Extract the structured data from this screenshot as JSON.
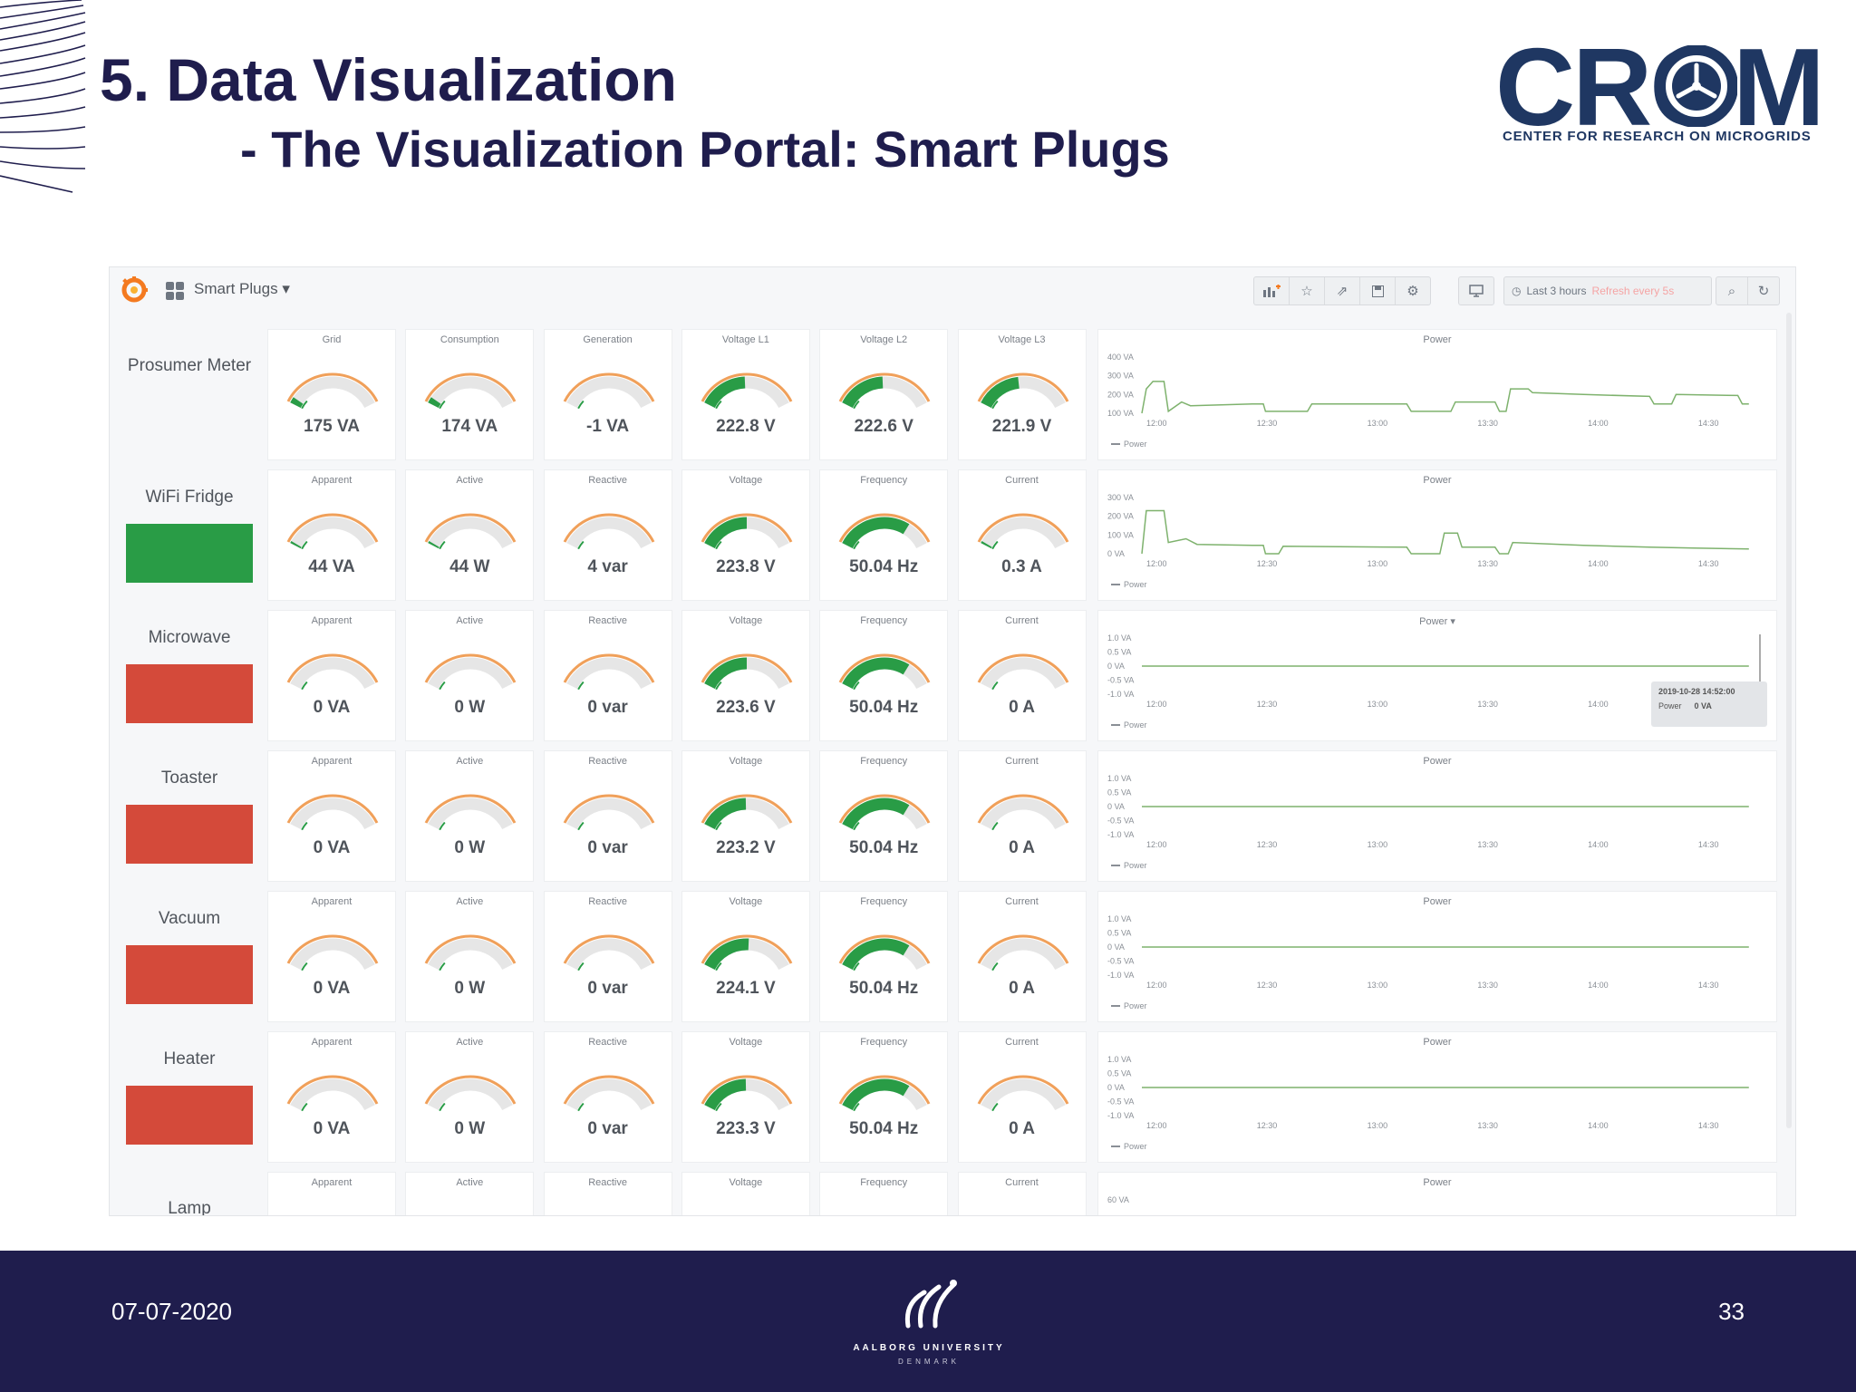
{
  "slide": {
    "title": "5. Data Visualization",
    "subtitle": "- The Visualization Portal: Smart Plugs",
    "date": "07-07-2020",
    "page_number": "33"
  },
  "logo": {
    "word": "CROM",
    "subtitle": "CENTER FOR RESEARCH ON MICROGRIDS",
    "color": "#1f3762"
  },
  "footer_logo": {
    "name": "AALBORG UNIVERSITY",
    "sub": "DENMARK"
  },
  "colors": {
    "navy": "#1f1d4d",
    "gauge_green": "#299c46",
    "gauge_orange": "#f0a05a",
    "gauge_track": "#e6e6e6",
    "status_green": "#299c46",
    "status_red": "#d44a3a",
    "series_green": "#7eb26d"
  },
  "dashboard": {
    "title": "Smart Plugs",
    "time_range": "Last 3 hours",
    "time_offset": "Refresh every 5s",
    "toolbar_icons": [
      "add-panel-icon",
      "star-icon",
      "share-icon",
      "save-icon",
      "settings-icon"
    ],
    "tv_icon": "monitor-icon",
    "x_ticks": [
      "12:00",
      "12:30",
      "13:00",
      "13:30",
      "14:00",
      "14:30"
    ],
    "series_label": "Power",
    "rows": [
      {
        "label": "Prosumer Meter",
        "status": "none",
        "gauges": [
          {
            "title": "Grid",
            "value": "175 VA",
            "fill": 0.06
          },
          {
            "title": "Consumption",
            "value": "174 VA",
            "fill": 0.06
          },
          {
            "title": "Generation",
            "value": "-1 VA",
            "fill": 0
          },
          {
            "title": "Voltage L1",
            "value": "222.8 V",
            "fill": 0.48
          },
          {
            "title": "Voltage L2",
            "value": "222.6 V",
            "fill": 0.48
          },
          {
            "title": "Voltage L3",
            "value": "221.9 V",
            "fill": 0.45
          }
        ],
        "chart": {
          "title": "Power",
          "y_ticks": [
            "400 VA",
            "300 VA",
            "200 VA",
            "100 VA"
          ],
          "ylim": [
            100,
            400
          ],
          "series": [
            [
              12.0,
              100
            ],
            [
              12.02,
              230
            ],
            [
              12.05,
              270
            ],
            [
              12.1,
              270
            ],
            [
              12.12,
              110
            ],
            [
              12.18,
              160
            ],
            [
              12.22,
              140
            ],
            [
              12.5,
              150
            ],
            [
              12.55,
              150
            ],
            [
              12.56,
              110
            ],
            [
              12.75,
              110
            ],
            [
              12.77,
              150
            ],
            [
              13.2,
              150
            ],
            [
              13.22,
              110
            ],
            [
              13.4,
              110
            ],
            [
              13.42,
              160
            ],
            [
              13.6,
              160
            ],
            [
              13.62,
              110
            ],
            [
              13.65,
              110
            ],
            [
              13.67,
              230
            ],
            [
              13.75,
              230
            ],
            [
              13.77,
              210
            ],
            [
              14.0,
              200
            ],
            [
              14.3,
              190
            ],
            [
              14.32,
              150
            ],
            [
              14.4,
              150
            ],
            [
              14.42,
              200
            ],
            [
              14.7,
              195
            ],
            [
              14.72,
              150
            ],
            [
              14.75,
              150
            ]
          ]
        }
      },
      {
        "label": "WiFi Fridge",
        "status": "green",
        "gauges": [
          {
            "title": "Apparent",
            "value": "44 VA",
            "fill": 0.02
          },
          {
            "title": "Active",
            "value": "44 W",
            "fill": 0.02
          },
          {
            "title": "Reactive",
            "value": "4 var",
            "fill": 0
          },
          {
            "title": "Voltage",
            "value": "223.8 V",
            "fill": 0.5
          },
          {
            "title": "Frequency",
            "value": "50.04 Hz",
            "fill": 0.75
          },
          {
            "title": "Current",
            "value": "0.3 A",
            "fill": 0.02
          }
        ],
        "chart": {
          "title": "Power",
          "y_ticks": [
            "300 VA",
            "200 VA",
            "100 VA",
            "0 VA"
          ],
          "ylim": [
            0,
            300
          ],
          "series": [
            [
              12.0,
              0
            ],
            [
              12.02,
              230
            ],
            [
              12.1,
              230
            ],
            [
              12.12,
              60
            ],
            [
              12.2,
              80
            ],
            [
              12.25,
              50
            ],
            [
              12.5,
              45
            ],
            [
              12.55,
              45
            ],
            [
              12.56,
              0
            ],
            [
              12.62,
              0
            ],
            [
              12.64,
              40
            ],
            [
              13.2,
              35
            ],
            [
              13.22,
              0
            ],
            [
              13.35,
              0
            ],
            [
              13.37,
              110
            ],
            [
              13.43,
              110
            ],
            [
              13.45,
              35
            ],
            [
              13.6,
              35
            ],
            [
              13.62,
              0
            ],
            [
              13.66,
              0
            ],
            [
              13.68,
              60
            ],
            [
              14.0,
              45
            ],
            [
              14.3,
              35
            ],
            [
              14.5,
              30
            ],
            [
              14.75,
              25
            ]
          ]
        }
      },
      {
        "label": "Microwave",
        "status": "red",
        "gauges": [
          {
            "title": "Apparent",
            "value": "0 VA",
            "fill": 0
          },
          {
            "title": "Active",
            "value": "0 W",
            "fill": 0
          },
          {
            "title": "Reactive",
            "value": "0 var",
            "fill": 0
          },
          {
            "title": "Voltage",
            "value": "223.6 V",
            "fill": 0.5
          },
          {
            "title": "Frequency",
            "value": "50.04 Hz",
            "fill": 0.75
          },
          {
            "title": "Current",
            "value": "0 A",
            "fill": 0
          }
        ],
        "chart": {
          "title": "Power ▾",
          "y_ticks": [
            "1.0 VA",
            "0.5 VA",
            "0 VA",
            "-0.5 VA",
            "-1.0 VA"
          ],
          "ylim": [
            -1,
            1
          ],
          "series": [
            [
              12.0,
              0
            ],
            [
              14.75,
              0
            ]
          ],
          "tooltip": {
            "time": "2019-10-28 14:52:00",
            "series": "Power",
            "value": "0 VA"
          }
        }
      },
      {
        "label": "Toaster",
        "status": "red",
        "gauges": [
          {
            "title": "Apparent",
            "value": "0 VA",
            "fill": 0
          },
          {
            "title": "Active",
            "value": "0 W",
            "fill": 0
          },
          {
            "title": "Reactive",
            "value": "0 var",
            "fill": 0
          },
          {
            "title": "Voltage",
            "value": "223.2 V",
            "fill": 0.49
          },
          {
            "title": "Frequency",
            "value": "50.04 Hz",
            "fill": 0.75
          },
          {
            "title": "Current",
            "value": "0 A",
            "fill": 0
          }
        ],
        "chart": {
          "title": "Power",
          "y_ticks": [
            "1.0 VA",
            "0.5 VA",
            "0 VA",
            "-0.5 VA",
            "-1.0 VA"
          ],
          "ylim": [
            -1,
            1
          ],
          "series": [
            [
              12.0,
              0
            ],
            [
              14.75,
              0
            ]
          ]
        }
      },
      {
        "label": "Vacuum",
        "status": "red",
        "gauges": [
          {
            "title": "Apparent",
            "value": "0 VA",
            "fill": 0
          },
          {
            "title": "Active",
            "value": "0 W",
            "fill": 0
          },
          {
            "title": "Reactive",
            "value": "0 var",
            "fill": 0
          },
          {
            "title": "Voltage",
            "value": "224.1 V",
            "fill": 0.52
          },
          {
            "title": "Frequency",
            "value": "50.04 Hz",
            "fill": 0.75
          },
          {
            "title": "Current",
            "value": "0 A",
            "fill": 0
          }
        ],
        "chart": {
          "title": "Power",
          "y_ticks": [
            "1.0 VA",
            "0.5 VA",
            "0 VA",
            "-0.5 VA",
            "-1.0 VA"
          ],
          "ylim": [
            -1,
            1
          ],
          "series": [
            [
              12.0,
              0
            ],
            [
              14.75,
              0
            ]
          ]
        }
      },
      {
        "label": "Heater",
        "status": "red",
        "gauges": [
          {
            "title": "Apparent",
            "value": "0 VA",
            "fill": 0
          },
          {
            "title": "Active",
            "value": "0 W",
            "fill": 0
          },
          {
            "title": "Reactive",
            "value": "0 var",
            "fill": 0
          },
          {
            "title": "Voltage",
            "value": "223.3 V",
            "fill": 0.49
          },
          {
            "title": "Frequency",
            "value": "50.04 Hz",
            "fill": 0.75
          },
          {
            "title": "Current",
            "value": "0 A",
            "fill": 0
          }
        ],
        "chart": {
          "title": "Power",
          "y_ticks": [
            "1.0 VA",
            "0.5 VA",
            "0 VA",
            "-0.5 VA",
            "-1.0 VA"
          ],
          "ylim": [
            -1,
            1
          ],
          "series": [
            [
              12.0,
              0
            ],
            [
              14.75,
              0
            ]
          ]
        }
      },
      {
        "label": "Lamp",
        "status": "none",
        "gauges": [
          {
            "title": "Apparent",
            "value": "",
            "fill": 0
          },
          {
            "title": "Active",
            "value": "",
            "fill": 0
          },
          {
            "title": "Reactive",
            "value": "",
            "fill": 0
          },
          {
            "title": "Voltage",
            "value": "",
            "fill": 0
          },
          {
            "title": "Frequency",
            "value": "",
            "fill": 0
          },
          {
            "title": "Current",
            "value": "",
            "fill": 0
          }
        ],
        "chart": {
          "title": "Power",
          "y_ticks": [
            "60 VA"
          ],
          "ylim": [
            0,
            60
          ],
          "series": []
        }
      }
    ]
  }
}
